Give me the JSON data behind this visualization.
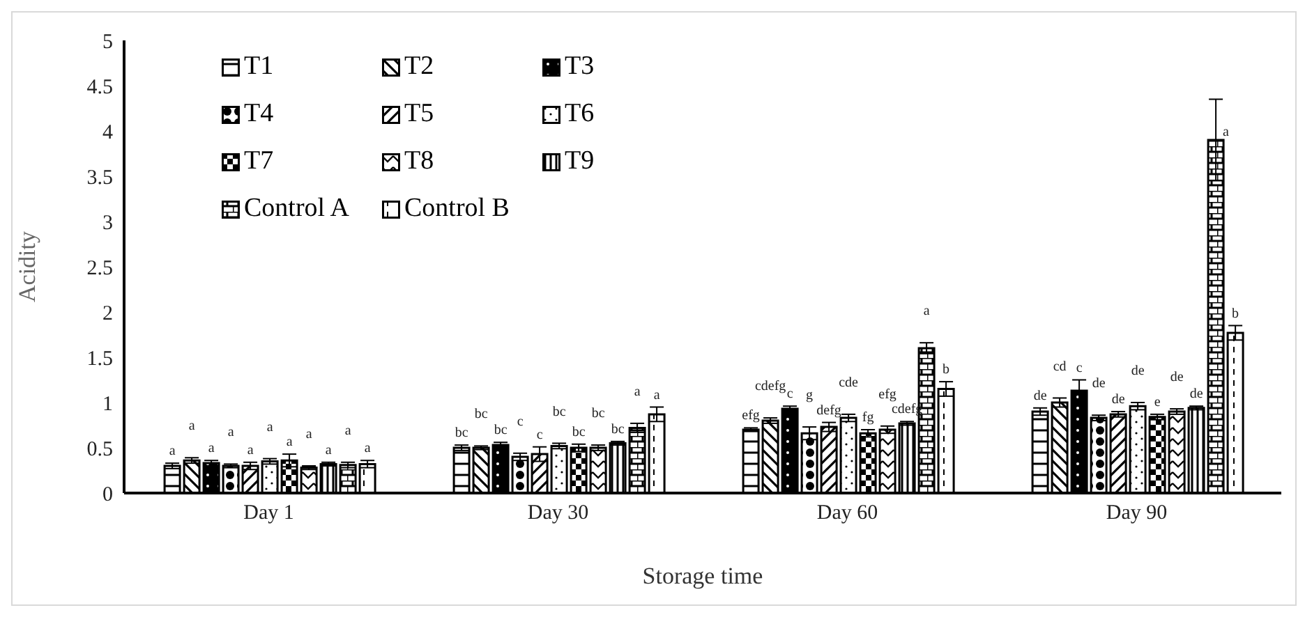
{
  "chart_data": {
    "type": "bar",
    "xlabel": "Storage time",
    "ylabel": "Acidity",
    "categories": [
      "Day 1",
      "Day 30",
      "Day 60",
      "Day 90"
    ],
    "ylim": [
      0,
      5
    ],
    "yticks": [
      0,
      0.5,
      1,
      1.5,
      2,
      2.5,
      3,
      3.5,
      4,
      4.5,
      5
    ],
    "legend": "top left",
    "series": [
      {
        "name": "T1",
        "color": "#000000",
        "values": [
          0.3,
          0.5,
          0.7,
          0.9
        ],
        "errors": [
          0.03,
          0.03,
          0.02,
          0.04
        ],
        "value_labels": [
          "a",
          "bc",
          "efg",
          "de"
        ]
      },
      {
        "name": "T2",
        "color": "#000000",
        "values": [
          0.36,
          0.5,
          0.8,
          1.0
        ],
        "errors": [
          0.03,
          0.02,
          0.03,
          0.05
        ],
        "value_labels": [
          "a",
          "bc",
          "cdefg",
          "cd"
        ]
      },
      {
        "name": "T3",
        "color": "#000000",
        "values": [
          0.33,
          0.53,
          0.93,
          1.13
        ],
        "errors": [
          0.03,
          0.03,
          0.03,
          0.12
        ],
        "value_labels": [
          "a",
          "bc",
          "c",
          "c"
        ]
      },
      {
        "name": "T4",
        "color": "#000000",
        "values": [
          0.3,
          0.4,
          0.66,
          0.83
        ],
        "errors": [
          0.02,
          0.04,
          0.07,
          0.03
        ],
        "value_labels": [
          "a",
          "c",
          "g",
          "de"
        ]
      },
      {
        "name": "T5",
        "color": "#000000",
        "values": [
          0.3,
          0.43,
          0.73,
          0.87
        ],
        "errors": [
          0.04,
          0.08,
          0.05,
          0.03
        ],
        "value_labels": [
          "a",
          "c",
          "defg",
          "de"
        ]
      },
      {
        "name": "T6",
        "color": "#000000",
        "values": [
          0.35,
          0.52,
          0.83,
          0.96
        ],
        "errors": [
          0.03,
          0.03,
          0.04,
          0.04
        ],
        "value_labels": [
          "a",
          "bc",
          "cde",
          "de"
        ]
      },
      {
        "name": "T7",
        "color": "#000000",
        "values": [
          0.36,
          0.5,
          0.66,
          0.84
        ],
        "errors": [
          0.07,
          0.04,
          0.04,
          0.03
        ],
        "value_labels": [
          "a",
          "bc",
          "fg",
          "e"
        ]
      },
      {
        "name": "T8",
        "color": "#000000",
        "values": [
          0.28,
          0.5,
          0.7,
          0.9
        ],
        "errors": [
          0.02,
          0.03,
          0.04,
          0.03
        ],
        "value_labels": [
          "a",
          "bc",
          "efg",
          "de"
        ]
      },
      {
        "name": "T9",
        "color": "#000000",
        "values": [
          0.32,
          0.55,
          0.77,
          0.94
        ],
        "errors": [
          0.02,
          0.02,
          0.02,
          0.02
        ],
        "value_labels": [
          "a",
          "bc",
          "cdefg",
          "de"
        ]
      },
      {
        "name": "Control A",
        "color": "#000000",
        "values": [
          0.31,
          0.72,
          1.6,
          3.9
        ],
        "errors": [
          0.03,
          0.05,
          0.06,
          0.45
        ],
        "value_labels": [
          "a",
          "a",
          "a",
          "a"
        ]
      },
      {
        "name": "Control B",
        "color": "#000000",
        "values": [
          0.32,
          0.87,
          1.15,
          1.77
        ],
        "errors": [
          0.04,
          0.08,
          0.08,
          0.08
        ],
        "value_labels": [
          "a",
          "a",
          "b",
          "b"
        ]
      }
    ]
  }
}
